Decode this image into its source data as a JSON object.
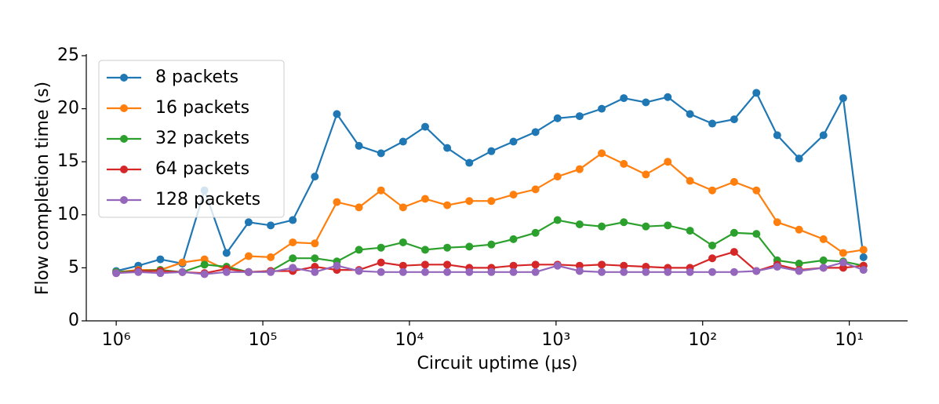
{
  "chart_data": {
    "type": "line",
    "xlabel": "Circuit uptime (μs)",
    "ylabel": "Flow completion time (s)",
    "log_x": true,
    "x_reversed": true,
    "xlim": [
      1600000,
      4
    ],
    "ylim": [
      0,
      25
    ],
    "xticks": [
      {
        "value": 1000000,
        "label": "10⁶"
      },
      {
        "value": 100000,
        "label": "10⁵"
      },
      {
        "value": 10000,
        "label": "10⁴"
      },
      {
        "value": 1000,
        "label": "10³"
      },
      {
        "value": 100,
        "label": "10²"
      },
      {
        "value": 10,
        "label": "10¹"
      }
    ],
    "yticks": [
      0,
      5,
      10,
      15,
      20,
      25
    ],
    "legend": "upper left",
    "x": [
      1000000,
      707107,
      500000,
      353553,
      250000,
      176777,
      125000,
      88388,
      62500,
      44194,
      31250,
      22097,
      15625,
      11049,
      7813,
      5524,
      3906,
      2762,
      1953,
      1381,
      977,
      691,
      488,
      345,
      244,
      173,
      122,
      86,
      61,
      43,
      31,
      22,
      15,
      11,
      8
    ],
    "series": [
      {
        "name": "8 packets",
        "color": "#1f77b4",
        "values": [
          4.7,
          5.2,
          5.8,
          5.4,
          12.3,
          6.4,
          9.3,
          9.0,
          9.5,
          13.6,
          19.5,
          16.5,
          15.8,
          16.9,
          18.3,
          16.3,
          14.9,
          16.0,
          16.9,
          17.8,
          19.1,
          19.3,
          20.0,
          21.0,
          20.6,
          21.1,
          19.5,
          18.6,
          19.0,
          21.5,
          17.5,
          15.3,
          17.5,
          21.0,
          6.0
        ]
      },
      {
        "name": "16 packets",
        "color": "#ff7f0e",
        "values": [
          4.6,
          4.8,
          4.8,
          5.5,
          5.8,
          4.8,
          6.1,
          6.0,
          7.4,
          7.3,
          11.2,
          10.7,
          12.3,
          10.7,
          11.5,
          10.9,
          11.3,
          11.3,
          11.9,
          12.4,
          13.6,
          14.3,
          15.8,
          14.8,
          13.8,
          15.0,
          13.2,
          12.3,
          13.1,
          12.3,
          9.3,
          8.6,
          7.7,
          6.4,
          6.7
        ]
      },
      {
        "name": "32 packets",
        "color": "#2ca02c",
        "values": [
          4.6,
          4.7,
          4.8,
          4.6,
          5.3,
          5.1,
          4.6,
          4.7,
          5.9,
          5.9,
          5.6,
          6.7,
          6.9,
          7.4,
          6.7,
          6.9,
          7.0,
          7.2,
          7.7,
          8.3,
          9.5,
          9.1,
          8.9,
          9.3,
          8.9,
          9.0,
          8.5,
          7.1,
          8.3,
          8.2,
          5.7,
          5.4,
          5.7,
          5.6,
          5.2
        ]
      },
      {
        "name": "64 packets",
        "color": "#d62728",
        "values": [
          4.5,
          4.7,
          4.7,
          4.6,
          4.5,
          4.9,
          4.6,
          4.7,
          4.7,
          5.1,
          4.8,
          4.8,
          5.5,
          5.2,
          5.3,
          5.3,
          5.0,
          5.0,
          5.2,
          5.3,
          5.3,
          5.2,
          5.3,
          5.2,
          5.1,
          5.0,
          5.0,
          5.9,
          6.5,
          4.7,
          5.3,
          4.8,
          5.0,
          5.0,
          5.2
        ]
      },
      {
        "name": "128 packets",
        "color": "#9467bd",
        "values": [
          4.5,
          4.6,
          4.5,
          4.6,
          4.4,
          4.6,
          4.6,
          4.6,
          5.0,
          4.6,
          5.2,
          4.7,
          4.6,
          4.6,
          4.6,
          4.6,
          4.6,
          4.6,
          4.6,
          4.6,
          5.2,
          4.7,
          4.6,
          4.6,
          4.6,
          4.6,
          4.6,
          4.6,
          4.6,
          4.7,
          5.1,
          4.7,
          5.0,
          5.5,
          4.8
        ]
      }
    ]
  }
}
